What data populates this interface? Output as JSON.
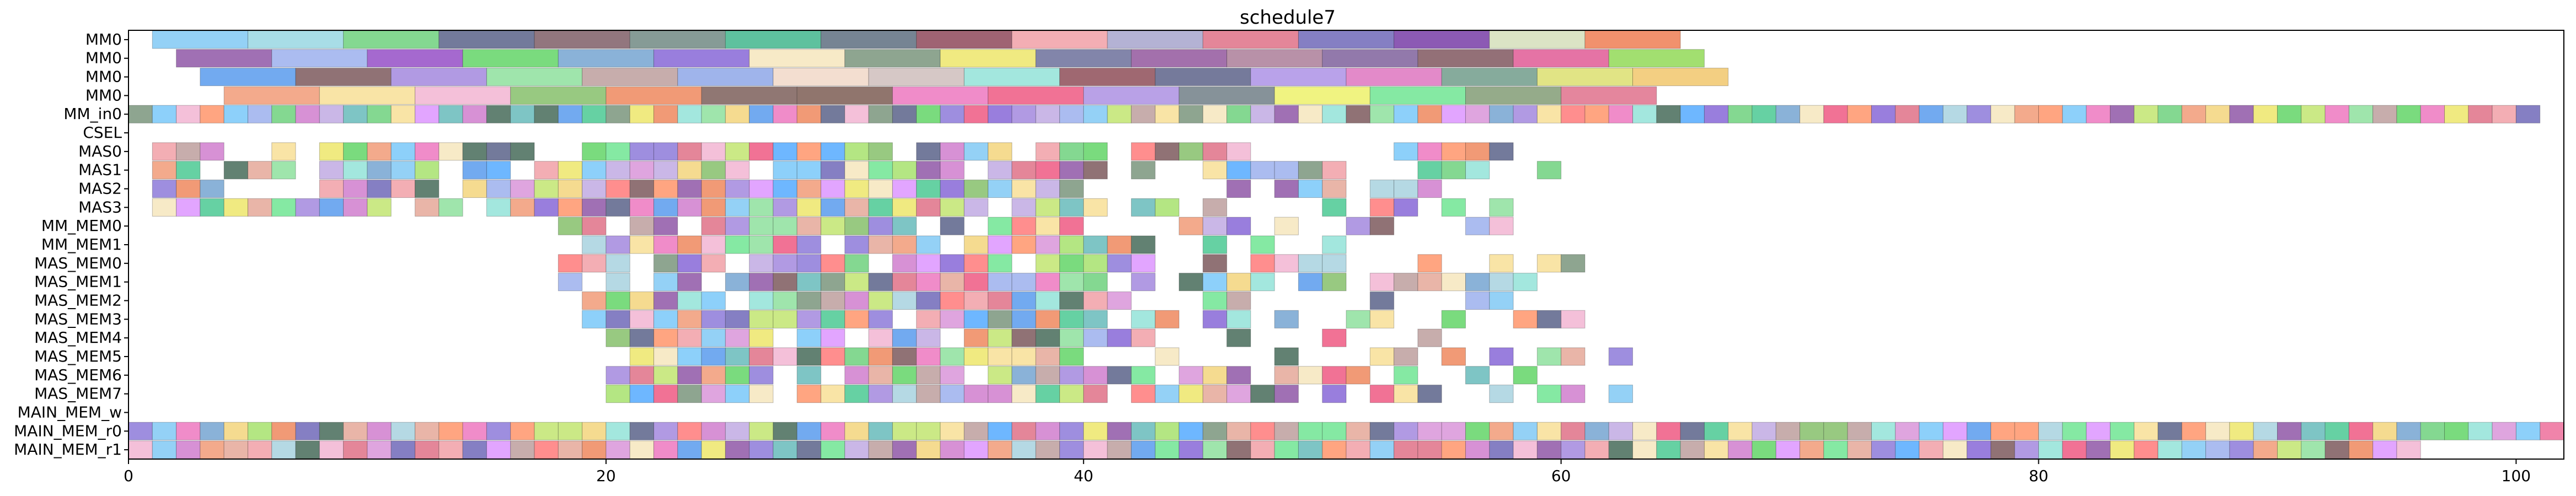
{
  "chart_data": {
    "type": "gantt",
    "title": "schedule7",
    "xlabel": "",
    "ylabel": "",
    "xlim": [
      0,
      102
    ],
    "x_ticks": [
      0,
      20,
      40,
      60,
      80,
      100
    ],
    "grid": false,
    "rows": [
      "MM0",
      "MM0",
      "MM0",
      "MM0",
      "MM_in0",
      "CSEL",
      "MAS0",
      "MAS1",
      "MAS2",
      "MAS3",
      "MM_MEM0",
      "MM_MEM1",
      "MAS_MEM0",
      "MAS_MEM1",
      "MAS_MEM2",
      "MAS_MEM3",
      "MAS_MEM4",
      "MAS_MEM5",
      "MAS_MEM6",
      "MAS_MEM7",
      "MAIN_MEM_w",
      "MAIN_MEM_r0",
      "MAIN_MEM_r1"
    ],
    "tasks": [
      {
        "row": 0,
        "start": 1,
        "end": 5,
        "color": "#8ecff5"
      },
      {
        "row": 0,
        "start": 5,
        "end": 9,
        "color": "#a3dbe6"
      },
      {
        "row": 0,
        "start": 9,
        "end": 13,
        "color": "#7dd68b"
      },
      {
        "row": 0,
        "start": 13,
        "end": 17,
        "color": "#6b7396"
      },
      {
        "row": 0,
        "start": 17,
        "end": 21,
        "color": "#8c6f77"
      },
      {
        "row": 0,
        "start": 21,
        "end": 25,
        "color": "#7f9690"
      },
      {
        "row": 0,
        "start": 25,
        "end": 29,
        "color": "#55be99"
      },
      {
        "row": 0,
        "start": 29,
        "end": 33,
        "color": "#6f7d8d"
      },
      {
        "row": 0,
        "start": 33,
        "end": 37,
        "color": "#9a5b6c"
      },
      {
        "row": 0,
        "start": 37,
        "end": 41,
        "color": "#f2aab0"
      },
      {
        "row": 0,
        "start": 41,
        "end": 45,
        "color": "#b0aed2"
      },
      {
        "row": 0,
        "start": 45,
        "end": 49,
        "color": "#e37f93"
      },
      {
        "row": 0,
        "start": 49,
        "end": 53,
        "color": "#7e78c0"
      },
      {
        "row": 0,
        "start": 53,
        "end": 57,
        "color": "#8651b0"
      },
      {
        "row": 0,
        "start": 57,
        "end": 61,
        "color": "#d9e3c2"
      },
      {
        "row": 0,
        "start": 61,
        "end": 65,
        "color": "#f08b65"
      },
      {
        "row": 1,
        "start": 2,
        "end": 6,
        "color": "#9b68b0"
      },
      {
        "row": 1,
        "start": 6,
        "end": 10,
        "color": "#a7b8ef"
      },
      {
        "row": 1,
        "start": 10,
        "end": 14,
        "color": "#a061cc"
      },
      {
        "row": 1,
        "start": 14,
        "end": 18,
        "color": "#73d977"
      },
      {
        "row": 1,
        "start": 18,
        "end": 22,
        "color": "#84aed6"
      },
      {
        "row": 1,
        "start": 22,
        "end": 26,
        "color": "#9477db"
      },
      {
        "row": 1,
        "start": 26,
        "end": 30,
        "color": "#f7e9c4"
      },
      {
        "row": 1,
        "start": 30,
        "end": 34,
        "color": "#88a08a"
      },
      {
        "row": 1,
        "start": 34,
        "end": 38,
        "color": "#efe97a"
      },
      {
        "row": 1,
        "start": 38,
        "end": 42,
        "color": "#7b7ea5"
      },
      {
        "row": 1,
        "start": 42,
        "end": 46,
        "color": "#9e68a8"
      },
      {
        "row": 1,
        "start": 46,
        "end": 50,
        "color": "#b48ba3"
      },
      {
        "row": 1,
        "start": 50,
        "end": 54,
        "color": "#8c72a6"
      },
      {
        "row": 1,
        "start": 54,
        "end": 58,
        "color": "#8d6870"
      },
      {
        "row": 1,
        "start": 58,
        "end": 62,
        "color": "#e46ca0"
      },
      {
        "row": 1,
        "start": 62,
        "end": 66,
        "color": "#9ddd68"
      },
      {
        "row": 2,
        "start": 3,
        "end": 7,
        "color": "#6aa5ef"
      },
      {
        "row": 2,
        "start": 7,
        "end": 11,
        "color": "#8a6a6e"
      },
      {
        "row": 2,
        "start": 11,
        "end": 15,
        "color": "#ad95e2"
      },
      {
        "row": 2,
        "start": 15,
        "end": 19,
        "color": "#9ae4a8"
      },
      {
        "row": 2,
        "start": 19,
        "end": 23,
        "color": "#c4a9a8"
      },
      {
        "row": 2,
        "start": 23,
        "end": 27,
        "color": "#9ab0ea"
      },
      {
        "row": 2,
        "start": 27,
        "end": 31,
        "color": "#f2dccd"
      },
      {
        "row": 2,
        "start": 31,
        "end": 35,
        "color": "#d4c5c3"
      },
      {
        "row": 2,
        "start": 35,
        "end": 39,
        "color": "#9ee6dc"
      },
      {
        "row": 2,
        "start": 39,
        "end": 43,
        "color": "#9a6069"
      },
      {
        "row": 2,
        "start": 43,
        "end": 47,
        "color": "#6e7396"
      },
      {
        "row": 2,
        "start": 47,
        "end": 51,
        "color": "#b59de9"
      },
      {
        "row": 2,
        "start": 51,
        "end": 55,
        "color": "#e284c6"
      },
      {
        "row": 2,
        "start": 55,
        "end": 59,
        "color": "#80a697"
      },
      {
        "row": 2,
        "start": 59,
        "end": 63,
        "color": "#dfe37e"
      },
      {
        "row": 2,
        "start": 63,
        "end": 67,
        "color": "#f2cc7b"
      },
      {
        "row": 3,
        "start": 4,
        "end": 8,
        "color": "#f2a586"
      },
      {
        "row": 3,
        "start": 8,
        "end": 12,
        "color": "#f9e3a1"
      },
      {
        "row": 3,
        "start": 12,
        "end": 16,
        "color": "#f3bdd7"
      },
      {
        "row": 3,
        "start": 16,
        "end": 20,
        "color": "#92c67a"
      },
      {
        "row": 3,
        "start": 20,
        "end": 24,
        "color": "#f0956f"
      },
      {
        "row": 3,
        "start": 24,
        "end": 28,
        "color": "#8a706c"
      },
      {
        "row": 3,
        "start": 28,
        "end": 32,
        "color": "#8a6e65"
      },
      {
        "row": 3,
        "start": 32,
        "end": 36,
        "color": "#ef86c6"
      },
      {
        "row": 3,
        "start": 36,
        "end": 40,
        "color": "#f06a8f"
      },
      {
        "row": 3,
        "start": 40,
        "end": 44,
        "color": "#b59ce6"
      },
      {
        "row": 3,
        "start": 44,
        "end": 48,
        "color": "#7f8c93"
      },
      {
        "row": 3,
        "start": 48,
        "end": 52,
        "color": "#eff27a"
      },
      {
        "row": 3,
        "start": 52,
        "end": 56,
        "color": "#7ee89e"
      },
      {
        "row": 3,
        "start": 56,
        "end": 60,
        "color": "#8fa684"
      },
      {
        "row": 3,
        "start": 60,
        "end": 64,
        "color": "#e37f98"
      },
      {
        "row": 21,
        "start": 101,
        "end": 102,
        "color": "#ef7da5"
      }
    ]
  },
  "palette": [
    "#8ecff5",
    "#d58bd3",
    "#7dd68b",
    "#6b7396",
    "#f2aab0",
    "#e37f93",
    "#7e78c0",
    "#9b68b0",
    "#a7b8ef",
    "#73d977",
    "#84aed6",
    "#9477db",
    "#f7e9c4",
    "#88a08a",
    "#efe97a",
    "#6aa5ef",
    "#8a6a6e",
    "#ad95e2",
    "#9ae4a8",
    "#c4a9a8",
    "#9ee6dc",
    "#f2a586",
    "#f9e3a1",
    "#f3bdd7",
    "#92c67a",
    "#f0956f",
    "#ef86c6",
    "#f06a8f",
    "#7ee89e",
    "#5ecf9e",
    "#c7b3e6",
    "#b1d7e3",
    "#e8b1a3",
    "#5a7a6a",
    "#c8e880",
    "#ff8888",
    "#77c2c2",
    "#f4d98a",
    "#9988dd",
    "#66b3ff",
    "#e0a0ff",
    "#ffa07a",
    "#b0e57c",
    "#dda0dd",
    "#87cefa"
  ],
  "segment_rows": {
    "4": [
      0,
      101,
      1
    ],
    "6": [
      1,
      58,
      1
    ],
    "7": [
      1,
      60,
      1
    ],
    "8": [
      1,
      59,
      1
    ],
    "9": [
      1,
      58,
      1
    ],
    "10": [
      18,
      58,
      1
    ],
    "11": [
      19,
      51,
      1
    ],
    "12": [
      18,
      62,
      1
    ],
    "13": [
      18,
      60,
      1
    ],
    "14": [
      19,
      62,
      1
    ],
    "15": [
      19,
      62,
      1
    ],
    "16": [
      20,
      56,
      1
    ],
    "17": [
      20,
      63,
      1
    ],
    "18": [
      20,
      59,
      1
    ],
    "19": [
      20,
      63,
      1
    ],
    "21": [
      0,
      101,
      1
    ],
    "22": [
      0,
      96,
      1
    ]
  }
}
